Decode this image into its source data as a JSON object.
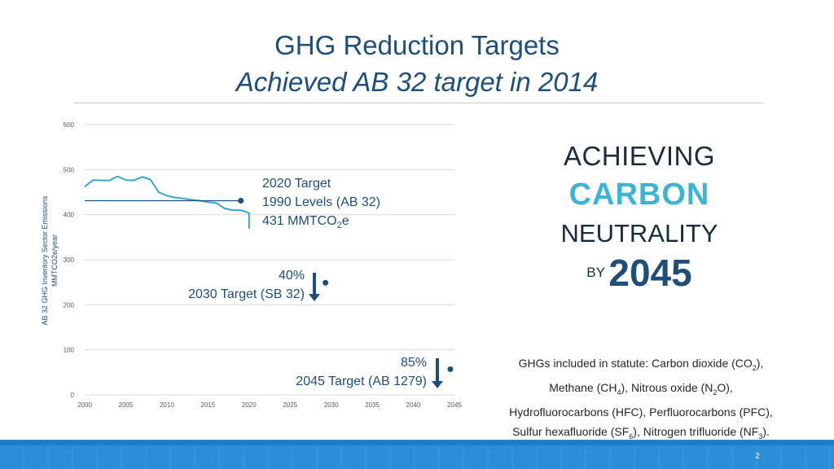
{
  "slide": {
    "title_line1": "GHG Reduction Targets",
    "title_line2": "Achieved AB 32 target in 2014",
    "page_number": "2"
  },
  "annotations": {
    "target2020_line1": "2020 Target",
    "target2020_line2": "1990 Levels (AB 32)",
    "target2020_line3_prefix": "431 MMTCO",
    "target2020_line3_sub": "2",
    "target2020_line3_suffix": "e",
    "target2030_pct": "40%",
    "target2030_label": "2030 Target (SB 32)",
    "target2045_pct": "85%",
    "target2045_label": "2045 Target (AB 1279)"
  },
  "badge": {
    "achieving": "ACHIEVING",
    "carbon": "CARBON",
    "neutrality": "NEUTRALITY",
    "by": "BY",
    "year": "2045"
  },
  "ghg_note": {
    "l1a": "GHGs included in statute: Carbon dioxide (CO",
    "l1b": "2",
    "l1c": "),",
    "l2a": "Methane (CH",
    "l2b": "4",
    "l2c": "), Nitrous oxide (N",
    "l2d": "2",
    "l2e": "O),",
    "l3": "Hydrofluorocarbons (HFC), Perfluorocarbons (PFC),",
    "l4a": "Sulfur hexafluoride (SF",
    "l4b": "6",
    "l4c": "), Nitrogen trifluoride (NF",
    "l4d": "3",
    "l4e": ")."
  },
  "colors": {
    "emissions_line": "#35a7cf",
    "target_line": "#1f4e79",
    "marker": "#1f4e79",
    "arrow": "#1f4e79",
    "grid": "#d9d9d9"
  },
  "chart_data": {
    "type": "line",
    "ylabel_line1": "AB 32 GHG Inventory Sector Emissions",
    "ylabel_line2": "MMTCO2e/year",
    "xlim": [
      2000,
      2045
    ],
    "ylim": [
      0,
      600
    ],
    "x_ticks": [
      2000,
      2005,
      2010,
      2015,
      2020,
      2025,
      2030,
      2035,
      2040,
      2045
    ],
    "y_ticks": [
      0,
      100,
      200,
      300,
      400,
      500,
      600
    ],
    "grid": true,
    "series": [
      {
        "x": [
          2000,
          2001,
          2002,
          2003,
          2004,
          2005,
          2006,
          2007,
          2008,
          2009,
          2010,
          2011,
          2012,
          2013,
          2014,
          2015,
          2016,
          2017,
          2018,
          2019,
          2020
        ],
        "values": [
          462,
          477,
          476,
          476,
          485,
          477,
          476,
          484,
          478,
          450,
          442,
          438,
          436,
          433,
          431,
          428,
          426,
          414,
          410,
          410,
          404
        ],
        "extra_point": [
          2020,
          369
        ]
      }
    ],
    "reference_line": {
      "value": 431,
      "x_start": 2000,
      "x_end": 2019
    },
    "markers": [
      {
        "x": 2019,
        "y": 431
      },
      {
        "x": 2029.3,
        "y": 249
      },
      {
        "x": 2044.5,
        "y": 57
      }
    ]
  }
}
